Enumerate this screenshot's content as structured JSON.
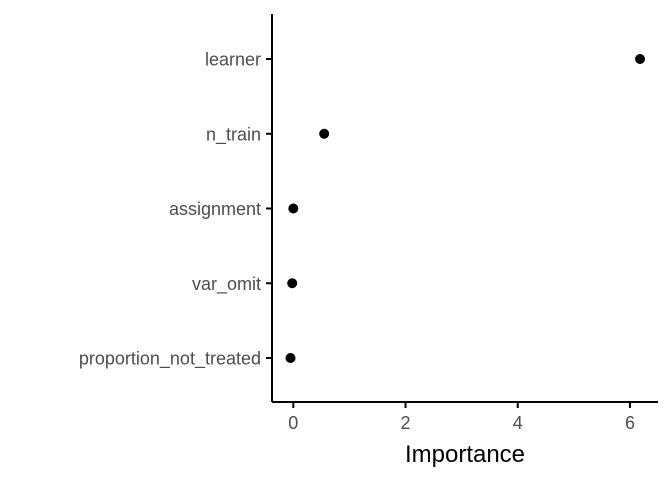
{
  "chart_data": {
    "type": "scatter",
    "title": "",
    "xlabel": "Importance",
    "ylabel": "",
    "categories": [
      "learner",
      "n_train",
      "assignment",
      "var_omit",
      "proportion_not_treated"
    ],
    "values": [
      6.18,
      0.55,
      0.0,
      -0.02,
      -0.05
    ],
    "xlim": [
      -0.38,
      6.5
    ],
    "x_ticks": [
      0,
      2,
      4,
      6
    ],
    "grid": false,
    "legend": "none",
    "point_color": "#000000",
    "axis_color": "#000000",
    "tick_label_color": "#4d4d4d"
  }
}
